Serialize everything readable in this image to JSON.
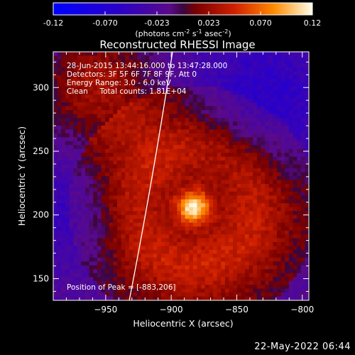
{
  "colorbar": {
    "ticks": [
      "-0.12",
      "-0.070",
      "-0.023",
      "0.023",
      "0.070",
      "0.12"
    ],
    "unit_label": "(photons cm",
    "unit_sup1": "-2",
    "unit_mid": " s",
    "unit_sup2": "-1",
    "unit_end": " asec",
    "unit_sup3": "-2",
    "unit_close": ")",
    "vmin": -0.12,
    "vmax": 0.12
  },
  "chart_data": {
    "type": "heatmap",
    "title": "Reconstructed RHESSI Image",
    "xlabel": "Heliocentric X (arcsec)",
    "ylabel": "Heliocentric Y (arcsec)",
    "xlim": [
      -990,
      -795
    ],
    "ylim": [
      133,
      328
    ],
    "xticks": [
      -950,
      -900,
      -850,
      -800
    ],
    "yticks": [
      150,
      200,
      250,
      300
    ],
    "peak": {
      "x": -883,
      "y": 206
    },
    "limb_x_at_ylim": [
      -932,
      -899
    ],
    "annotations": [
      "28-Jun-2015 13:44:16.000 to 13:47:28.000",
      "Detectors: 3F 5F 6F 7F 8F 9F, Att 0",
      "Energy Range: 3.0 - 6.0 keV",
      "Clean     Total counts: 1.81E+04"
    ],
    "peak_label": "Position of Peak = [-883,206]"
  },
  "footer": {
    "date": "22-May-2022 06:44"
  }
}
